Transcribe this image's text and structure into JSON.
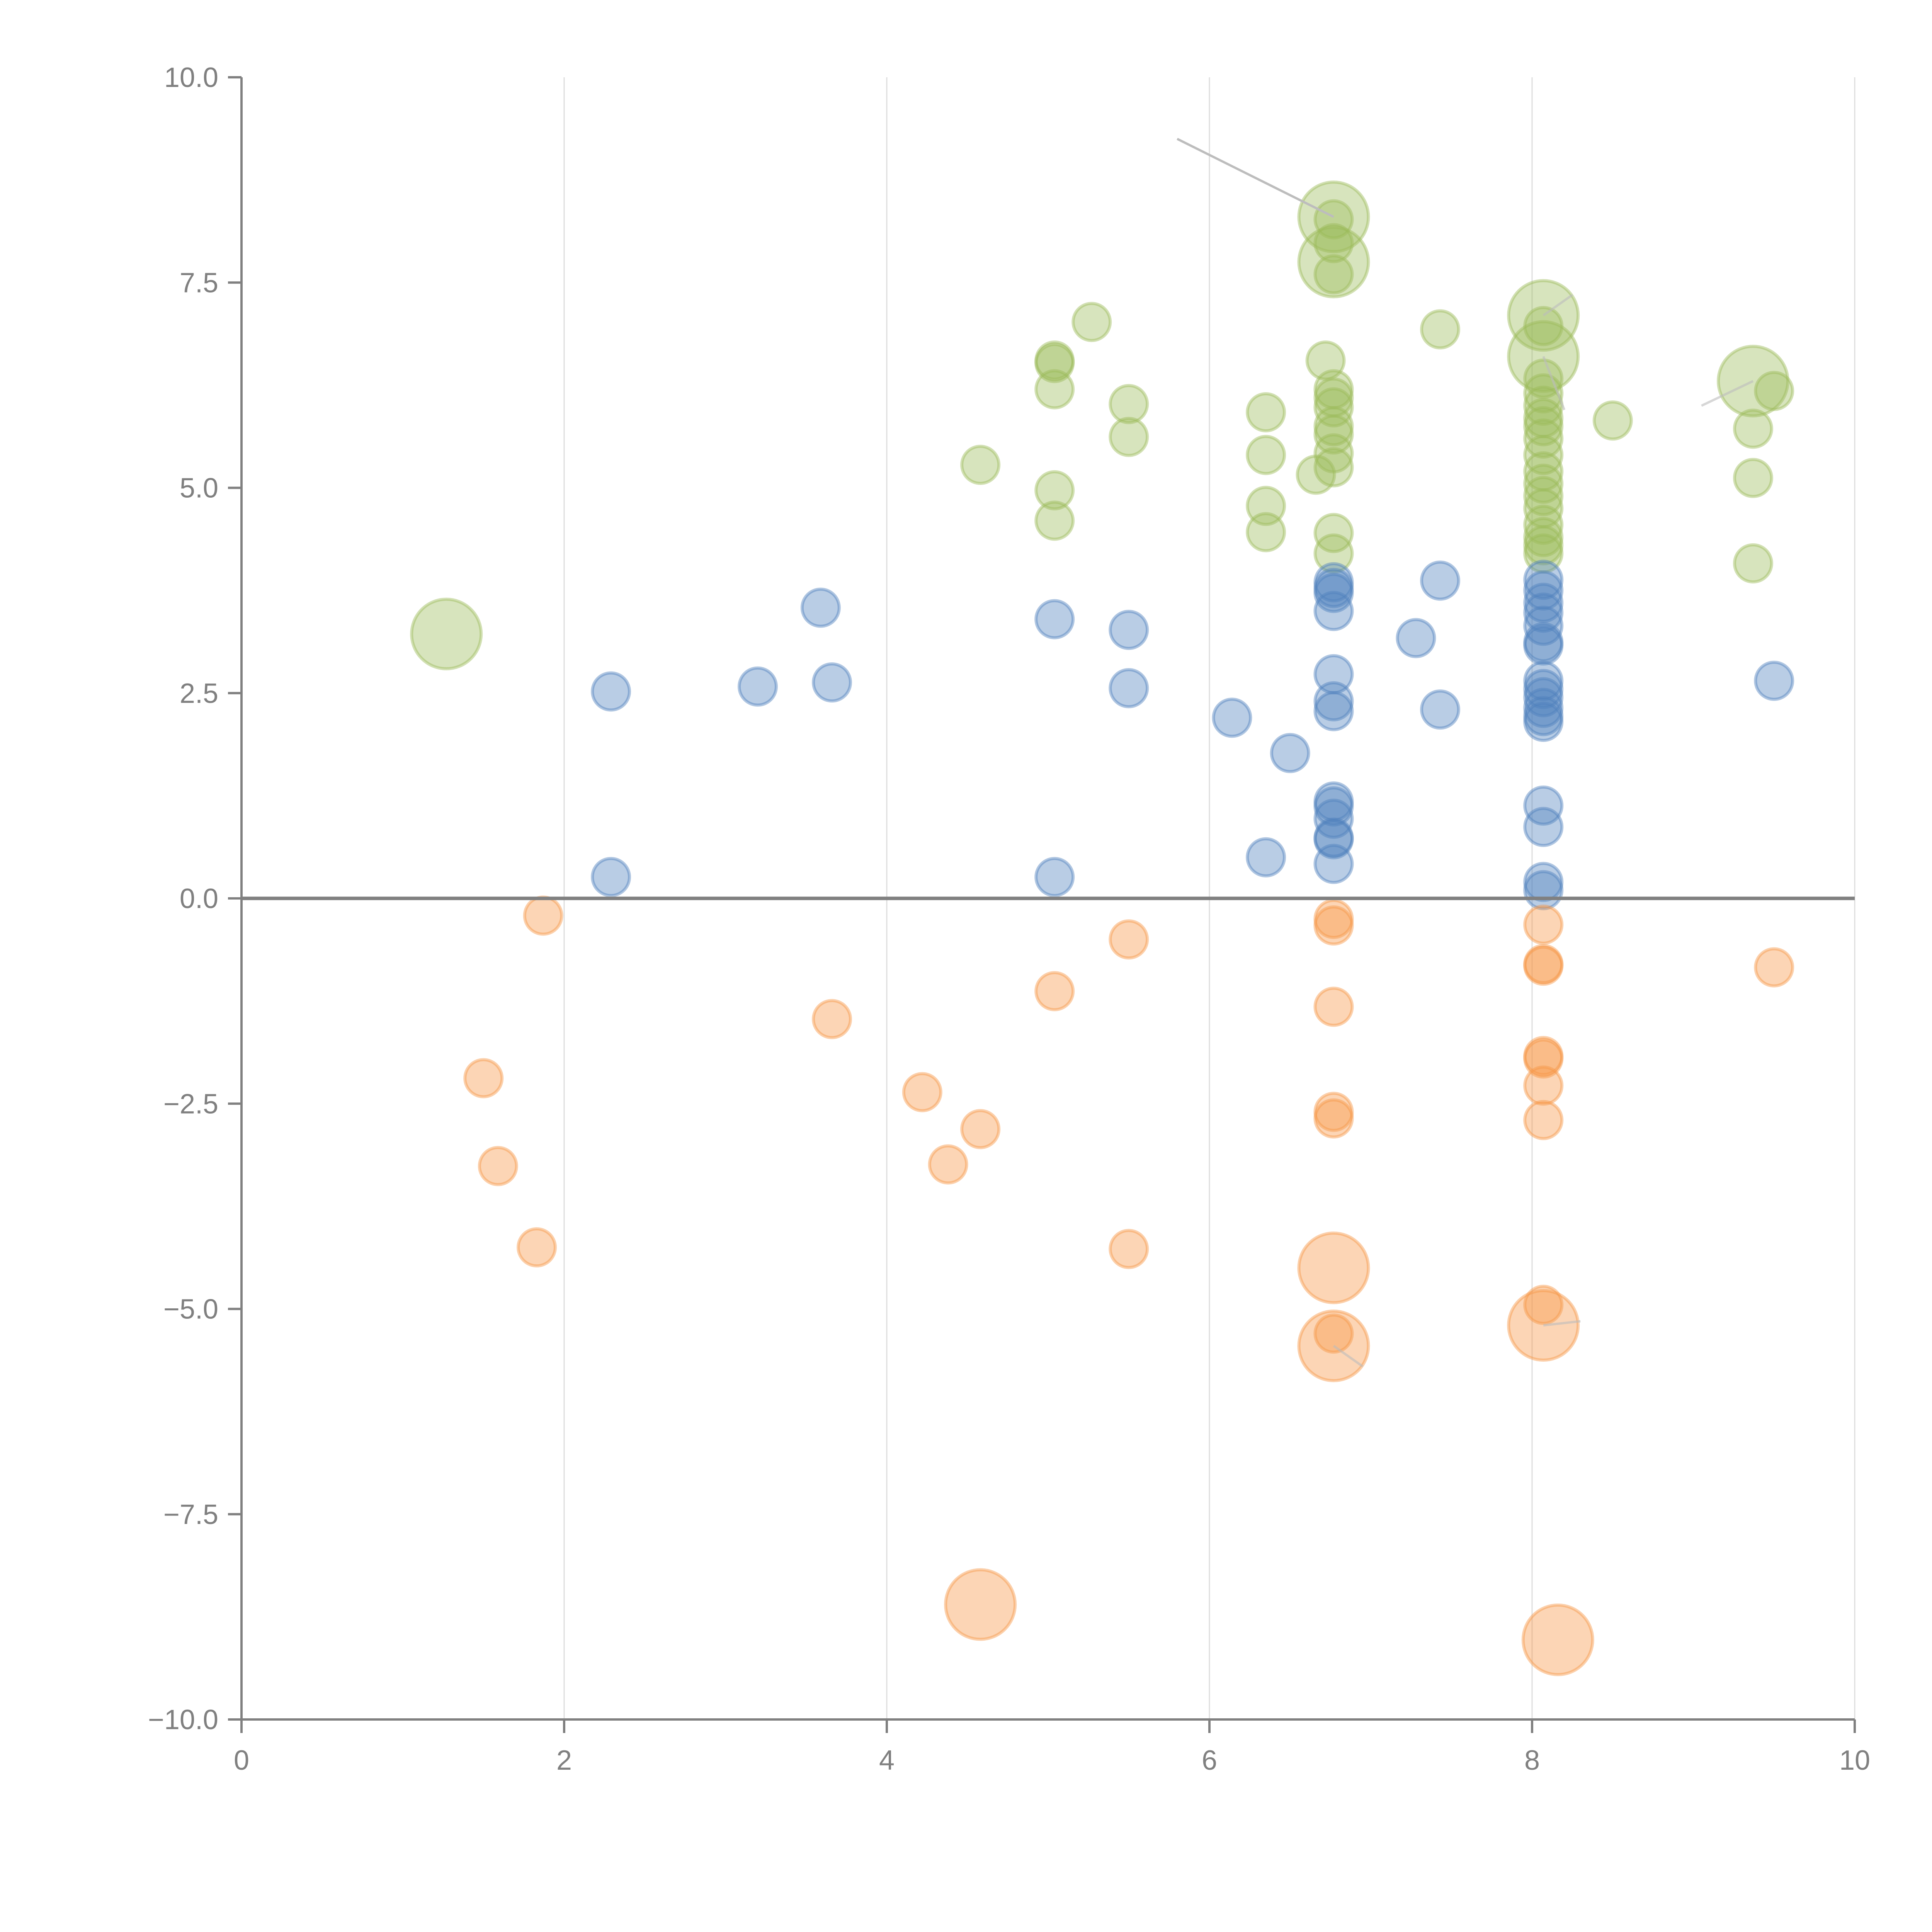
{
  "chart_data": {
    "type": "scatter",
    "subtype": "bubble",
    "title": "",
    "xlabel": "",
    "ylabel": "",
    "xlim": [
      0,
      10
    ],
    "ylim": [
      -10,
      10
    ],
    "x_ticks": [
      0,
      2,
      4,
      6,
      8,
      10
    ],
    "x_tick_labels": [
      "0",
      "2",
      "4",
      "6",
      "8",
      "10"
    ],
    "y_ticks": [
      -10,
      -7.5,
      -5,
      -2.5,
      0,
      2.5,
      5,
      7.5,
      10
    ],
    "y_tick_labels": [
      "−10.0",
      "−7.5",
      "−5.0",
      "−2.5",
      "0.0",
      "2.5",
      "5.0",
      "7.5",
      "10.0"
    ],
    "grid": {
      "vertical": true,
      "horizontal": false
    },
    "zero_line": true,
    "legend": "none",
    "series": [
      {
        "name": "green",
        "color": "#9bbb59",
        "points": [
          {
            "x": 1.27,
            "y": 3.22,
            "size": 3
          },
          {
            "x": 4.58,
            "y": 5.28,
            "size": 1
          },
          {
            "x": 5.04,
            "y": 6.55,
            "size": 1
          },
          {
            "x": 5.04,
            "y": 6.52,
            "size": 1
          },
          {
            "x": 5.04,
            "y": 6.2,
            "size": 1
          },
          {
            "x": 5.04,
            "y": 4.97,
            "size": 1
          },
          {
            "x": 5.04,
            "y": 4.6,
            "size": 1
          },
          {
            "x": 5.27,
            "y": 7.02,
            "size": 1
          },
          {
            "x": 5.5,
            "y": 6.02,
            "size": 1
          },
          {
            "x": 5.5,
            "y": 5.62,
            "size": 1
          },
          {
            "x": 6.35,
            "y": 5.92,
            "size": 1
          },
          {
            "x": 6.35,
            "y": 5.4,
            "size": 1
          },
          {
            "x": 6.35,
            "y": 4.78,
            "size": 1
          },
          {
            "x": 6.35,
            "y": 4.46,
            "size": 1
          },
          {
            "x": 6.66,
            "y": 5.16,
            "size": 1
          },
          {
            "x": 6.77,
            "y": 8.3,
            "size": 3
          },
          {
            "x": 6.77,
            "y": 8.27,
            "size": 1
          },
          {
            "x": 6.77,
            "y": 7.75,
            "size": 3
          },
          {
            "x": 6.77,
            "y": 7.98,
            "size": 1
          },
          {
            "x": 6.77,
            "y": 7.6,
            "size": 1
          },
          {
            "x": 6.72,
            "y": 6.55,
            "size": 1
          },
          {
            "x": 6.77,
            "y": 6.2,
            "size": 1
          },
          {
            "x": 6.77,
            "y": 6.1,
            "size": 1
          },
          {
            "x": 6.77,
            "y": 5.98,
            "size": 1
          },
          {
            "x": 6.77,
            "y": 5.75,
            "size": 1
          },
          {
            "x": 6.77,
            "y": 5.65,
            "size": 1
          },
          {
            "x": 6.77,
            "y": 5.42,
            "size": 1
          },
          {
            "x": 6.77,
            "y": 5.25,
            "size": 1
          },
          {
            "x": 6.77,
            "y": 4.45,
            "size": 1
          },
          {
            "x": 6.77,
            "y": 4.2,
            "size": 1
          },
          {
            "x": 7.43,
            "y": 6.93,
            "size": 1
          },
          {
            "x": 8.07,
            "y": 7.1,
            "size": 3
          },
          {
            "x": 8.07,
            "y": 6.97,
            "size": 1
          },
          {
            "x": 8.07,
            "y": 6.6,
            "size": 3
          },
          {
            "x": 8.07,
            "y": 6.33,
            "size": 1
          },
          {
            "x": 8.07,
            "y": 6.15,
            "size": 1
          },
          {
            "x": 8.07,
            "y": 6.0,
            "size": 1
          },
          {
            "x": 8.07,
            "y": 5.85,
            "size": 1
          },
          {
            "x": 8.07,
            "y": 5.75,
            "size": 1
          },
          {
            "x": 8.07,
            "y": 5.6,
            "size": 1
          },
          {
            "x": 8.07,
            "y": 5.4,
            "size": 1
          },
          {
            "x": 8.07,
            "y": 5.2,
            "size": 1
          },
          {
            "x": 8.07,
            "y": 5.05,
            "size": 1
          },
          {
            "x": 8.07,
            "y": 4.9,
            "size": 1
          },
          {
            "x": 8.07,
            "y": 4.75,
            "size": 1
          },
          {
            "x": 8.07,
            "y": 4.55,
            "size": 1
          },
          {
            "x": 8.07,
            "y": 4.4,
            "size": 1
          },
          {
            "x": 8.07,
            "y": 4.3,
            "size": 1
          },
          {
            "x": 8.07,
            "y": 4.2,
            "size": 1
          },
          {
            "x": 8.5,
            "y": 5.82,
            "size": 1
          },
          {
            "x": 9.37,
            "y": 6.3,
            "size": 3
          },
          {
            "x": 9.5,
            "y": 6.18,
            "size": 1
          },
          {
            "x": 9.37,
            "y": 5.72,
            "size": 1
          },
          {
            "x": 9.37,
            "y": 5.12,
            "size": 1
          },
          {
            "x": 9.37,
            "y": 4.08,
            "size": 1
          }
        ]
      },
      {
        "name": "blue",
        "color": "#4f81bd",
        "points": [
          {
            "x": 2.29,
            "y": 2.52,
            "size": 1
          },
          {
            "x": 2.29,
            "y": 0.26,
            "size": 1
          },
          {
            "x": 3.2,
            "y": 2.58,
            "size": 1
          },
          {
            "x": 3.59,
            "y": 3.54,
            "size": 1
          },
          {
            "x": 3.66,
            "y": 2.63,
            "size": 1
          },
          {
            "x": 5.04,
            "y": 3.4,
            "size": 1
          },
          {
            "x": 5.04,
            "y": 0.26,
            "size": 1
          },
          {
            "x": 5.5,
            "y": 3.27,
            "size": 1
          },
          {
            "x": 5.5,
            "y": 2.56,
            "size": 1
          },
          {
            "x": 6.14,
            "y": 2.2,
            "size": 1
          },
          {
            "x": 6.35,
            "y": 0.5,
            "size": 1
          },
          {
            "x": 6.5,
            "y": 1.77,
            "size": 1
          },
          {
            "x": 6.77,
            "y": 3.85,
            "size": 1
          },
          {
            "x": 6.77,
            "y": 3.78,
            "size": 1
          },
          {
            "x": 6.77,
            "y": 3.72,
            "size": 1
          },
          {
            "x": 6.77,
            "y": 3.5,
            "size": 1
          },
          {
            "x": 6.77,
            "y": 2.73,
            "size": 1
          },
          {
            "x": 6.77,
            "y": 2.4,
            "size": 1
          },
          {
            "x": 6.77,
            "y": 2.28,
            "size": 1
          },
          {
            "x": 6.77,
            "y": 1.18,
            "size": 1
          },
          {
            "x": 6.77,
            "y": 1.12,
            "size": 1
          },
          {
            "x": 6.77,
            "y": 0.97,
            "size": 1
          },
          {
            "x": 6.77,
            "y": 0.74,
            "size": 1
          },
          {
            "x": 6.77,
            "y": 0.72,
            "size": 1
          },
          {
            "x": 6.77,
            "y": 0.42,
            "size": 1
          },
          {
            "x": 7.28,
            "y": 3.17,
            "size": 1
          },
          {
            "x": 7.43,
            "y": 3.87,
            "size": 1
          },
          {
            "x": 7.43,
            "y": 2.3,
            "size": 1
          },
          {
            "x": 8.07,
            "y": 3.88,
            "size": 1
          },
          {
            "x": 8.07,
            "y": 3.75,
            "size": 1
          },
          {
            "x": 8.07,
            "y": 3.6,
            "size": 1
          },
          {
            "x": 8.07,
            "y": 3.48,
            "size": 1
          },
          {
            "x": 8.07,
            "y": 3.32,
            "size": 1
          },
          {
            "x": 8.07,
            "y": 3.12,
            "size": 1
          },
          {
            "x": 8.07,
            "y": 3.08,
            "size": 1
          },
          {
            "x": 8.07,
            "y": 2.65,
            "size": 1
          },
          {
            "x": 8.07,
            "y": 2.55,
            "size": 1
          },
          {
            "x": 8.07,
            "y": 2.45,
            "size": 1
          },
          {
            "x": 8.07,
            "y": 2.32,
            "size": 1
          },
          {
            "x": 8.07,
            "y": 2.22,
            "size": 1
          },
          {
            "x": 8.07,
            "y": 2.15,
            "size": 1
          },
          {
            "x": 8.07,
            "y": 1.13,
            "size": 1
          },
          {
            "x": 8.07,
            "y": 0.87,
            "size": 1
          },
          {
            "x": 8.07,
            "y": 0.2,
            "size": 1
          },
          {
            "x": 8.07,
            "y": 0.1,
            "size": 1
          },
          {
            "x": 9.5,
            "y": 2.65,
            "size": 1
          }
        ]
      },
      {
        "name": "orange",
        "color": "#f79646",
        "points": [
          {
            "x": 1.5,
            "y": -2.19,
            "size": 1
          },
          {
            "x": 1.59,
            "y": -3.26,
            "size": 1
          },
          {
            "x": 1.83,
            "y": -4.25,
            "size": 1
          },
          {
            "x": 1.87,
            "y": -0.21,
            "size": 1
          },
          {
            "x": 3.66,
            "y": -1.47,
            "size": 1
          },
          {
            "x": 4.22,
            "y": -2.36,
            "size": 1
          },
          {
            "x": 4.38,
            "y": -3.24,
            "size": 1
          },
          {
            "x": 4.58,
            "y": -2.81,
            "size": 1
          },
          {
            "x": 4.58,
            "y": -8.6,
            "size": 3
          },
          {
            "x": 5.04,
            "y": -1.13,
            "size": 1
          },
          {
            "x": 5.5,
            "y": -0.5,
            "size": 1
          },
          {
            "x": 5.5,
            "y": -4.27,
            "size": 1
          },
          {
            "x": 6.77,
            "y": -0.25,
            "size": 1
          },
          {
            "x": 6.77,
            "y": -0.33,
            "size": 1
          },
          {
            "x": 6.77,
            "y": -1.32,
            "size": 1
          },
          {
            "x": 6.77,
            "y": -2.6,
            "size": 1
          },
          {
            "x": 6.77,
            "y": -2.68,
            "size": 1
          },
          {
            "x": 6.77,
            "y": -4.5,
            "size": 3
          },
          {
            "x": 6.77,
            "y": -5.45,
            "size": 3
          },
          {
            "x": 6.77,
            "y": -5.3,
            "size": 1
          },
          {
            "x": 8.07,
            "y": -0.32,
            "size": 1
          },
          {
            "x": 8.07,
            "y": -0.8,
            "size": 1
          },
          {
            "x": 8.07,
            "y": -0.82,
            "size": 1
          },
          {
            "x": 8.07,
            "y": -1.92,
            "size": 1
          },
          {
            "x": 8.07,
            "y": -1.95,
            "size": 1
          },
          {
            "x": 8.07,
            "y": -2.28,
            "size": 1
          },
          {
            "x": 8.07,
            "y": -2.7,
            "size": 1
          },
          {
            "x": 8.07,
            "y": -4.95,
            "size": 1
          },
          {
            "x": 8.07,
            "y": -5.2,
            "size": 3
          },
          {
            "x": 8.16,
            "y": -9.03,
            "size": 3
          },
          {
            "x": 9.5,
            "y": -0.84,
            "size": 1
          }
        ]
      }
    ],
    "annotations": [
      {
        "label": "",
        "target": {
          "x": 6.77,
          "y": 8.3
        },
        "text_at": {
          "x": 5.8,
          "y": 9.25
        },
        "line_color": "#bdbdbd"
      },
      {
        "label": "",
        "target": {
          "x": 8.07,
          "y": 7.1
        },
        "text_at": {
          "x": 8.25,
          "y": 7.35
        },
        "line_color": "#ffffff"
      },
      {
        "label": "",
        "target": {
          "x": 8.07,
          "y": 6.6
        },
        "text_at": {
          "x": 8.2,
          "y": 5.95
        },
        "line_color": "#ffffff"
      },
      {
        "label": "",
        "target": {
          "x": 9.37,
          "y": 6.3
        },
        "text_at": {
          "x": 9.05,
          "y": 6.0
        },
        "line_color": "#ffffff"
      },
      {
        "label": "",
        "target": {
          "x": 6.77,
          "y": -5.45
        },
        "text_at": {
          "x": 6.95,
          "y": -5.7
        },
        "line_color": "#ffffff"
      },
      {
        "label": "",
        "target": {
          "x": 8.07,
          "y": -5.2
        },
        "text_at": {
          "x": 8.3,
          "y": -5.15
        },
        "line_color": "#ffffff"
      }
    ]
  }
}
